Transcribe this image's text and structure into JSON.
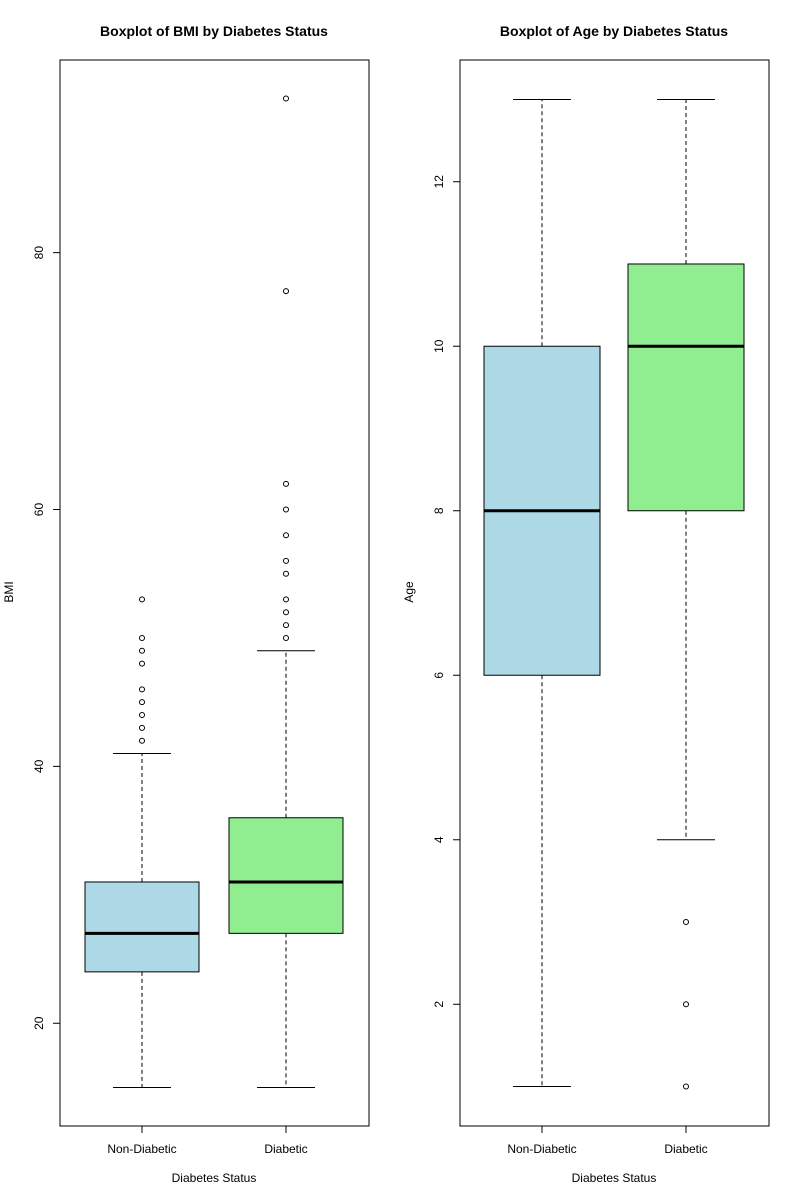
{
  "chart_data": [
    {
      "type": "boxplot",
      "title": "Boxplot of BMI by Diabetes Status",
      "xlabel": "Diabetes Status",
      "ylabel": "BMI",
      "ylim": [
        12,
        95
      ],
      "yticks": [
        20,
        40,
        60,
        80
      ],
      "categories": [
        "Non-Diabetic",
        "Diabetic"
      ],
      "colors": [
        "#ADD8E6",
        "#90EE90"
      ],
      "grid": false,
      "boxes": [
        {
          "category": "Non-Diabetic",
          "whisker_low": 15,
          "q1": 24,
          "median": 27,
          "q3": 31,
          "whisker_high": 41,
          "outliers": [
            42,
            43,
            44,
            45,
            46,
            48,
            49,
            50,
            53
          ]
        },
        {
          "category": "Diabetic",
          "whisker_low": 15,
          "q1": 27,
          "median": 31,
          "q3": 36,
          "whisker_high": 49,
          "outliers": [
            50,
            51,
            52,
            53,
            55,
            56,
            58,
            60,
            62,
            77,
            92
          ]
        }
      ]
    },
    {
      "type": "boxplot",
      "title": "Boxplot of Age by Diabetes Status",
      "xlabel": "Diabetes Status",
      "ylabel": "Age",
      "ylim": [
        0.52,
        13.48
      ],
      "yticks": [
        2,
        4,
        6,
        8,
        10,
        12
      ],
      "categories": [
        "Non-Diabetic",
        "Diabetic"
      ],
      "colors": [
        "#ADD8E6",
        "#90EE90"
      ],
      "grid": false,
      "boxes": [
        {
          "category": "Non-Diabetic",
          "whisker_low": 1,
          "q1": 6,
          "median": 8,
          "q3": 10,
          "whisker_high": 13,
          "outliers": []
        },
        {
          "category": "Diabetic",
          "whisker_low": 4,
          "q1": 8,
          "median": 10,
          "q3": 11,
          "whisker_high": 13,
          "outliers": [
            1,
            2,
            3
          ]
        }
      ]
    }
  ]
}
